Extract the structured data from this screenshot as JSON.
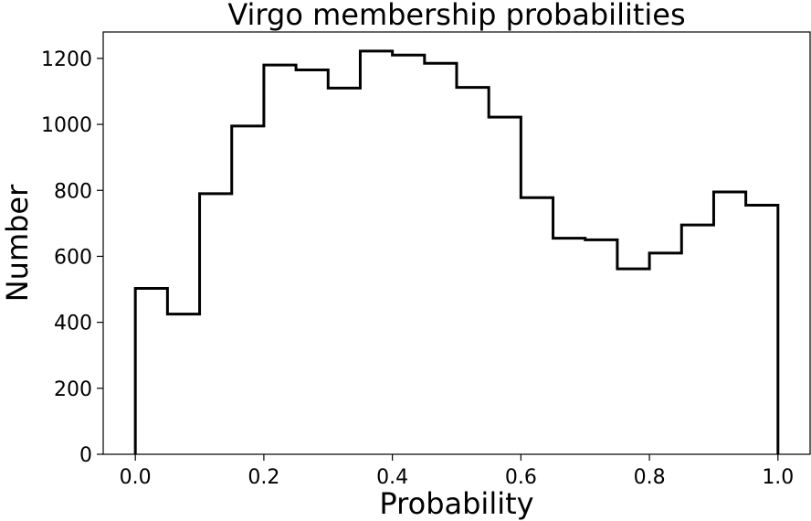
{
  "chart_data": {
    "type": "histogram",
    "title": "Virgo membership probabilities",
    "xlabel": "Probability",
    "ylabel": "Number",
    "xlim": [
      -0.05,
      1.05
    ],
    "ylim": [
      0,
      1280
    ],
    "xticks": [
      0.0,
      0.2,
      0.4,
      0.6,
      0.8,
      1.0
    ],
    "xtick_labels": [
      "0.0",
      "0.2",
      "0.4",
      "0.6",
      "0.8",
      "1.0"
    ],
    "yticks": [
      0,
      200,
      400,
      600,
      800,
      1000,
      1200
    ],
    "ytick_labels": [
      "0",
      "200",
      "400",
      "600",
      "800",
      "1000",
      "1200"
    ],
    "bin_edges": [
      0.0,
      0.05,
      0.1,
      0.15,
      0.2,
      0.25,
      0.3,
      0.35,
      0.4,
      0.45,
      0.5,
      0.55,
      0.6,
      0.65,
      0.7,
      0.75,
      0.8,
      0.85,
      0.9,
      0.95,
      1.0
    ],
    "counts": [
      503,
      425,
      790,
      995,
      1180,
      1165,
      1110,
      1222,
      1210,
      1185,
      1112,
      1022,
      778,
      655,
      650,
      562,
      610,
      695,
      795,
      755
    ],
    "histtype": "step",
    "color": "#000000",
    "grid": false,
    "legend": false
  }
}
